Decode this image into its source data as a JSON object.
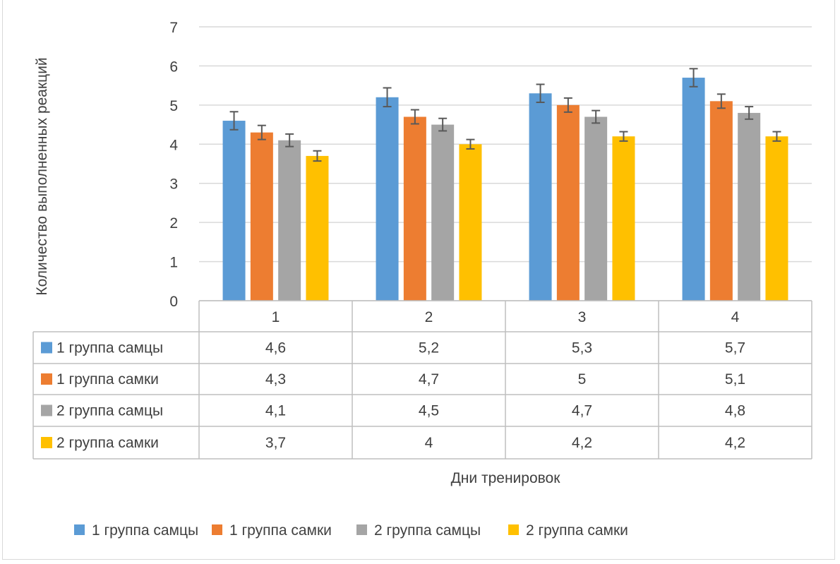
{
  "chart_data": {
    "type": "bar",
    "title": "",
    "xlabel": "Дни тренировок",
    "ylabel": "Количество выполненных реакций",
    "ylim": [
      0,
      7
    ],
    "yticks": [
      "0",
      "1",
      "2",
      "3",
      "4",
      "5",
      "6",
      "7"
    ],
    "grid": true,
    "legend_position": "bottom",
    "data_table": true,
    "categories": [
      "1",
      "2",
      "3",
      "4"
    ],
    "series": [
      {
        "name": "1 группа самцы",
        "color": "#5b9bd5",
        "values": [
          4.6,
          5.2,
          5.3,
          5.7
        ],
        "labels": [
          "4,6",
          "5,2",
          "5,3",
          "5,7"
        ],
        "errors": [
          0.23,
          0.24,
          0.23,
          0.23
        ]
      },
      {
        "name": "1 группа самки",
        "color": "#ed7d31",
        "values": [
          4.3,
          4.7,
          5.0,
          5.1
        ],
        "labels": [
          "4,3",
          "4,7",
          "5",
          "5,1"
        ],
        "errors": [
          0.18,
          0.18,
          0.18,
          0.18
        ]
      },
      {
        "name": "2 группа самцы",
        "color": "#a5a5a5",
        "values": [
          4.1,
          4.5,
          4.7,
          4.8
        ],
        "labels": [
          "4,1",
          "4,5",
          "4,7",
          "4,8"
        ],
        "errors": [
          0.16,
          0.16,
          0.16,
          0.16
        ]
      },
      {
        "name": "2 группа самки",
        "color": "#ffc000",
        "values": [
          3.7,
          4.0,
          4.2,
          4.2
        ],
        "labels": [
          "3,7",
          "4",
          "4,2",
          "4,2"
        ],
        "errors": [
          0.13,
          0.12,
          0.12,
          0.12
        ]
      }
    ]
  }
}
